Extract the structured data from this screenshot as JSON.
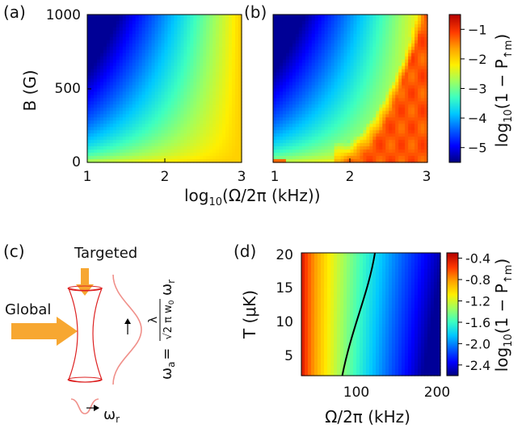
{
  "panel_labels": {
    "a": "(a)",
    "b": "(b)",
    "c": "(c)",
    "d": "(d)"
  },
  "colorscale": [
    "#00007f",
    "#0000ff",
    "#0060ff",
    "#00c8ff",
    "#3dffc0",
    "#a0ff5e",
    "#ffef00",
    "#ffa200",
    "#ff3a00",
    "#b40000"
  ],
  "chart_data": [
    {
      "type": "heatmap",
      "panel": "(a)",
      "xlabel": "log10(Ω/2π (kHz))",
      "ylabel": "B (G)",
      "xlim": [
        1,
        3
      ],
      "ylim": [
        0,
        1000
      ],
      "xticks": [
        "1",
        "2",
        "3"
      ],
      "yticks": [
        "0",
        "500",
        "1000"
      ],
      "zlim": [
        -5.5,
        -0.5
      ],
      "model": "smooth: log infidelity decreasing with B, increasing with Rabi frequency; yellow (~-2) plateau at high frequency"
    },
    {
      "type": "heatmap",
      "panel": "(b)",
      "xlim": [
        1,
        3
      ],
      "ylim": [
        0,
        1000
      ],
      "xticks": [
        "1",
        "2",
        "3"
      ],
      "zlim": [
        -5.5,
        -0.5
      ],
      "model": "as (a) but orange/red (~-1) regions at high Rabi frequency and low field"
    },
    {
      "type": "heatmap",
      "panel": "(d)",
      "xlabel": "Ω/2π (kHz)",
      "ylabel": "T (μK)",
      "xlim": [
        30,
        200
      ],
      "ylim": [
        2,
        20
      ],
      "xticks": [
        "100",
        "200"
      ],
      "yticks": [
        "5",
        "10",
        "15",
        "20"
      ],
      "zlim": [
        -2.6,
        -0.3
      ],
      "contour_line": {
        "x": [
          80,
          120
        ],
        "y": [
          2,
          20
        ]
      }
    }
  ],
  "colorbar_top": {
    "label_main": "log",
    "label_sub": "10",
    "label_rest": "(1 − P",
    "label_subscript": "↑m",
    "label_close": ")",
    "ticks": [
      "−1",
      "−2",
      "−3",
      "−4",
      "−5"
    ],
    "tick_values": [
      -1,
      -2,
      -3,
      -4,
      -5
    ]
  },
  "colorbar_bottom": {
    "label_main": "log",
    "label_sub": "10",
    "label_rest": "(1 − P",
    "label_subscript": "↑m",
    "label_close": ")",
    "ticks": [
      "-0.4",
      "-0.8",
      "-1.2",
      "-1.6",
      "-2.0",
      "-2.4"
    ],
    "tick_values": [
      -0.4,
      -0.8,
      -1.2,
      -1.6,
      -2.0,
      -2.4
    ]
  },
  "panel_c": {
    "targeted_label": "Targeted",
    "global_label": "Global",
    "omega_r_label": "ω",
    "omega_r_sub": "r",
    "formula_lhs": "ω",
    "formula_lhs_sub": "a",
    "formula_eq": "=",
    "formula_num": "λ",
    "formula_den": "√2 π w",
    "formula_den_sub": "0",
    "formula_rhs": "ω",
    "formula_rhs_sub": "r"
  },
  "axis_text": {
    "a_ylabel": "B (G)",
    "a_yticks": [
      "1000",
      "500",
      "0"
    ],
    "ab_xticks": [
      "1",
      "2",
      "3"
    ],
    "xlabel_top_main": "log",
    "xlabel_top_sub": "10",
    "xlabel_top_rest": "(Ω/2π (kHz))",
    "d_ylabel": "T (μK)",
    "d_yticks": [
      "20",
      "15",
      "10",
      "5"
    ],
    "d_xticks": [
      "100",
      "200"
    ],
    "d_xlabel": "Ω/2π (kHz)"
  }
}
